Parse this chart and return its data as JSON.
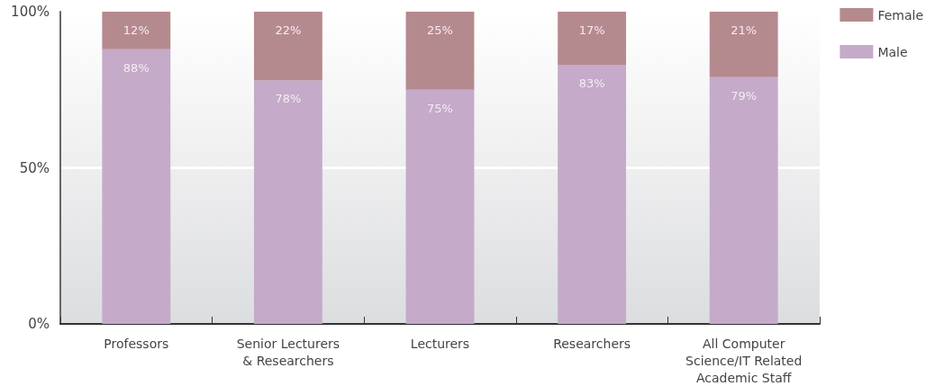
{
  "chart_data": {
    "type": "bar",
    "stacked": true,
    "categories": [
      "Professors",
      "Senior Lecturers\n& Researchers",
      "Lecturers",
      "Researchers",
      "All Computer\nScience/IT Related\nAcademic Staff"
    ],
    "series": [
      {
        "name": "Male",
        "color": "#c5aac9",
        "values": [
          88,
          78,
          75,
          83,
          79
        ],
        "value_labels": [
          "88%",
          "78%",
          "75%",
          "83%",
          "79%"
        ]
      },
      {
        "name": "Female",
        "color": "#b58a8f",
        "values": [
          12,
          22,
          25,
          17,
          21
        ],
        "value_labels": [
          "12%",
          "22%",
          "25%",
          "17%",
          "21%"
        ]
      }
    ],
    "ylim": [
      0,
      100
    ],
    "yticks": [
      {
        "value": 0,
        "label": "0%"
      },
      {
        "value": 50,
        "label": "50%"
      },
      {
        "value": 100,
        "label": "100%"
      }
    ],
    "grid": "y",
    "legend": "top right"
  }
}
